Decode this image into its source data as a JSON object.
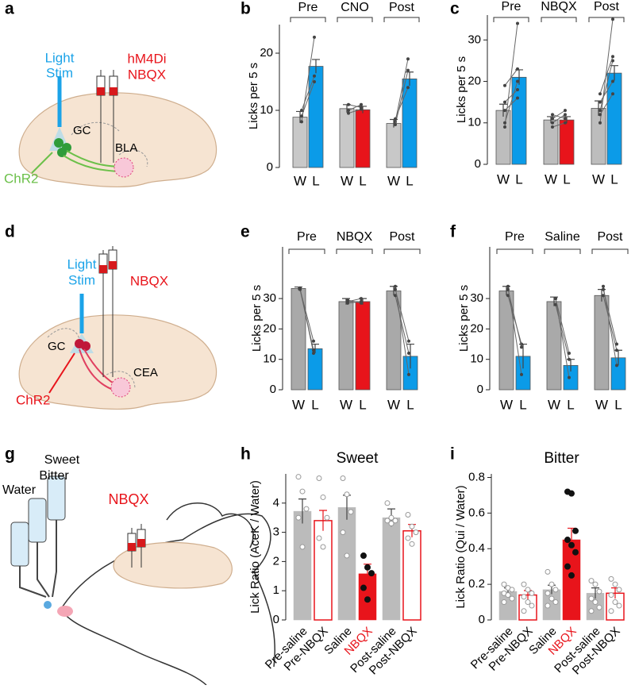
{
  "chart_data": [
    {
      "type": "paired_bar",
      "panel": "b",
      "ylabel": "Licks per 5 s",
      "groups": [
        "Pre",
        "CNO",
        "Post"
      ],
      "categories": [
        "W",
        "L",
        "W",
        "L",
        "W",
        "L"
      ],
      "values": [
        8.8,
        17.7,
        10.3,
        10.1,
        7.7,
        15.5
      ],
      "errors": [
        1.0,
        1.2,
        0.7,
        0.6,
        0.7,
        1.2
      ],
      "colors": [
        "#c8c8c8",
        "#0b9be8",
        "#c8c8c8",
        "#e8141b",
        "#c8c8c8",
        "#0b9be8"
      ],
      "individual": [
        [
          [
            8,
            22.8
          ],
          [
            10,
            16
          ],
          [
            9,
            15
          ]
        ],
        [
          [
            11,
            10.5
          ],
          [
            10,
            11
          ],
          [
            9.5,
            10.2
          ]
        ],
        [
          [
            8,
            19
          ],
          [
            7.5,
            17
          ],
          [
            8.5,
            14
          ]
        ]
      ],
      "ylim": [
        0,
        25
      ],
      "yticks": [
        0,
        10,
        20
      ]
    },
    {
      "type": "paired_bar",
      "panel": "c",
      "ylabel": "Licks per 5 s",
      "groups": [
        "Pre",
        "NBQX",
        "Post"
      ],
      "categories": [
        "W",
        "L",
        "W",
        "L",
        "W",
        "L"
      ],
      "values": [
        13,
        21,
        10.7,
        10.7,
        13.5,
        22
      ],
      "errors": [
        1.5,
        1.8,
        0.8,
        0.8,
        1.8,
        1.8
      ],
      "colors": [
        "#bdbdbd",
        "#0b9be8",
        "#bdbdbd",
        "#e8141b",
        "#bdbdbd",
        "#0b9be8"
      ],
      "individual": [
        [
          [
            9,
            34
          ],
          [
            10,
            20
          ],
          [
            15,
            18
          ],
          [
            13,
            16
          ],
          [
            19,
            23
          ]
        ],
        [
          [
            10,
            12
          ],
          [
            11,
            13
          ],
          [
            12,
            11
          ],
          [
            9,
            10
          ]
        ],
        [
          [
            10,
            35
          ],
          [
            13,
            25
          ],
          [
            15,
            20
          ],
          [
            12,
            17
          ],
          [
            17,
            26
          ]
        ]
      ],
      "ylim": [
        0,
        36
      ],
      "yticks": [
        0,
        10,
        20,
        30
      ]
    },
    {
      "type": "paired_bar",
      "panel": "e",
      "ylabel": "Licks per 5 s",
      "groups": [
        "Pre",
        "NBQX",
        "Post"
      ],
      "categories": [
        "W",
        "L",
        "W",
        "L",
        "W",
        "L"
      ],
      "values": [
        33.3,
        13.5,
        29,
        29,
        32.5,
        11
      ],
      "errors": [
        0.5,
        1.5,
        1,
        1,
        1.5,
        4
      ],
      "colors": [
        "#a9a9a9",
        "#0b9be8",
        "#a9a9a9",
        "#e8141b",
        "#a9a9a9",
        "#0b9be8"
      ],
      "individual": [
        [
          [
            33,
            16
          ],
          [
            33.5,
            12
          ],
          [
            33,
            13
          ]
        ],
        [
          [
            29,
            30
          ],
          [
            29.5,
            28.5
          ],
          [
            28.5,
            29
          ]
        ],
        [
          [
            34,
            5
          ],
          [
            31,
            12
          ],
          [
            33,
            16
          ]
        ]
      ],
      "ylim": [
        0,
        47
      ],
      "yticks": [
        0,
        10,
        20,
        30
      ]
    },
    {
      "type": "paired_bar",
      "panel": "f",
      "ylabel": "Licks per 5 s",
      "groups": [
        "Pre",
        "Saline",
        "Post"
      ],
      "categories": [
        "W",
        "L",
        "W",
        "L",
        "W",
        "L"
      ],
      "values": [
        32.5,
        11,
        29,
        8,
        31,
        10.5
      ],
      "errors": [
        1.5,
        4,
        1.5,
        2,
        2,
        2.5
      ],
      "colors": [
        "#a9a9a9",
        "#0b9be8",
        "#a9a9a9",
        "#0b9be8",
        "#a9a9a9",
        "#0b9be8"
      ],
      "individual": [
        [
          [
            34,
            5
          ],
          [
            31,
            15
          ],
          [
            33,
            14
          ]
        ],
        [
          [
            30,
            4
          ],
          [
            28,
            10
          ],
          [
            30,
            12
          ]
        ],
        [
          [
            34,
            8
          ],
          [
            31,
            13
          ],
          [
            33,
            15
          ]
        ]
      ],
      "ylim": [
        0,
        47
      ],
      "yticks": [
        0,
        10,
        20,
        30
      ]
    },
    {
      "type": "dot_bar",
      "panel": "h",
      "title": "Sweet",
      "ylabel": "Lick Ratio (AceK / Water)",
      "categories": [
        "Pre-saline",
        "Pre-NBQX",
        "Saline",
        "NBQX",
        "Post-saline",
        "Post-NBQX"
      ],
      "label_colors": [
        "#000000",
        "#000000",
        "#000000",
        "#e8141b",
        "#000000",
        "#000000"
      ],
      "values": [
        3.72,
        3.4,
        3.85,
        1.58,
        3.5,
        3.05
      ],
      "errors": [
        0.42,
        0.35,
        0.42,
        0.33,
        0.3,
        0.22
      ],
      "colors": [
        "#bbbbbb",
        "#e8141b",
        "#bbbbbb",
        "#e8141b",
        "#bbbbbb",
        "#e8141b"
      ],
      "bar_style": [
        "filled",
        "open",
        "filled",
        "filled",
        "filled",
        "open"
      ],
      "point_style": [
        "open",
        "open",
        "open",
        "filled",
        "open",
        "open"
      ],
      "points": [
        [
          4.9,
          4.4,
          3.8,
          3.5,
          2.5
        ],
        [
          4.85,
          4.2,
          3.5,
          2.8,
          2.5
        ],
        [
          4.85,
          4.3,
          3.7,
          3.0,
          2.2
        ],
        [
          2.2,
          1.8,
          1.6,
          1.1,
          0.7
        ],
        [
          4.0,
          3.5,
          3.4,
          3.4,
          3.3
        ],
        [
          3.6,
          3.2,
          3.0,
          2.8,
          2.6
        ]
      ],
      "ylim": [
        0,
        5
      ],
      "yticks": [
        0,
        1,
        2,
        3,
        4
      ]
    },
    {
      "type": "dot_bar",
      "panel": "i",
      "title": "Bitter",
      "ylabel": "Lick Ratio (Qui / Water)",
      "categories": [
        "Pre-saline",
        "Pre-NBQX",
        "Saline",
        "NBQX",
        "Post-saline",
        "Post-NBQX"
      ],
      "label_colors": [
        "#000000",
        "#000000",
        "#000000",
        "#e8141b",
        "#000000",
        "#000000"
      ],
      "values": [
        0.16,
        0.14,
        0.17,
        0.45,
        0.15,
        0.15
      ],
      "errors": [
        0.02,
        0.025,
        0.025,
        0.065,
        0.03,
        0.03
      ],
      "colors": [
        "#bbbbbb",
        "#e8141b",
        "#bbbbbb",
        "#e8141b",
        "#bbbbbb",
        "#e8141b"
      ],
      "bar_style": [
        "filled",
        "open",
        "filled",
        "filled",
        "filled",
        "open"
      ],
      "point_style": [
        "open",
        "open",
        "open",
        "filled",
        "open",
        "open"
      ],
      "points": [
        [
          0.2,
          0.18,
          0.17,
          0.15,
          0.14,
          0.12,
          0.1
        ],
        [
          0.2,
          0.17,
          0.15,
          0.13,
          0.1,
          0.08,
          0.05
        ],
        [
          0.27,
          0.2,
          0.17,
          0.15,
          0.12,
          0.1,
          0.08
        ],
        [
          0.72,
          0.71,
          0.5,
          0.45,
          0.42,
          0.38,
          0.3,
          0.25
        ],
        [
          0.22,
          0.2,
          0.16,
          0.12,
          0.1,
          0.07,
          0.05
        ],
        [
          0.23,
          0.2,
          0.17,
          0.14,
          0.1,
          0.08,
          0.05
        ]
      ],
      "ylim": [
        0,
        0.82
      ],
      "yticks": [
        0,
        0.2,
        0.4,
        0.6,
        0.8
      ]
    }
  ],
  "diagrams": [
    {
      "panel": "a",
      "light": "Light",
      "stim": "Stim",
      "drug1": "hM4Di",
      "drug2": "NBQX",
      "region1": "GC",
      "region2": "BLA",
      "opsin": "ChR2"
    },
    {
      "panel": "d",
      "light": "Light",
      "stim": "Stim",
      "drug": "NBQX",
      "region1": "GC",
      "region2": "CEA",
      "opsin": "ChR2"
    },
    {
      "panel": "g",
      "sweet": "Sweet",
      "bitter": "Bitter",
      "water": "Water",
      "drug": "NBQX"
    }
  ]
}
